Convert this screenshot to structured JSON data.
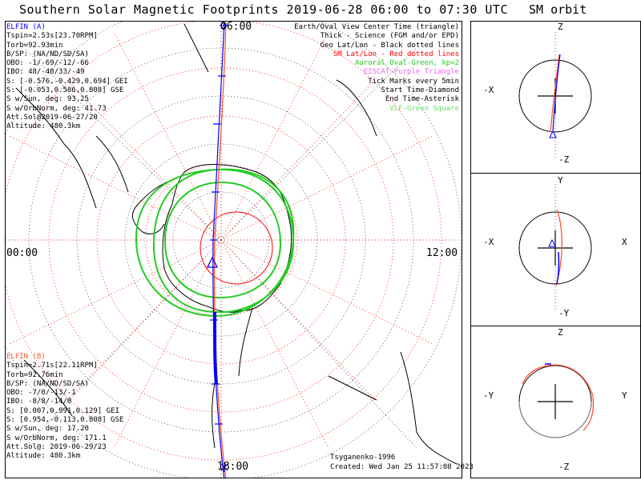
{
  "title": "Southern Solar Magnetic Footprints 2019-06-28 06:00 to 07:30 UTC",
  "orbit_title": "SM orbit",
  "legend": [
    {
      "text": "Earth/Oval View Center Time (triangle)",
      "color": "#000000"
    },
    {
      "text": "Thick - Science (FGM and/or EPD)",
      "color": "#000000"
    },
    {
      "text": "Geo Lat/Lon - Black dotted lines",
      "color": "#000000"
    },
    {
      "text": "SM Lat/Lon - Red dotted lines",
      "color": "#ff0000"
    },
    {
      "text": "Auroral Oval-Green, kp=2",
      "color": "#22cc22"
    },
    {
      "text": "EISCAT-Purple Triangle",
      "color": "#ee66ee"
    },
    {
      "text": "Tick Marks every 5min",
      "color": "#000000"
    },
    {
      "text": "Start Time-Diamond",
      "color": "#000000"
    },
    {
      "text": "End Time-Asterisk",
      "color": "#000000"
    },
    {
      "text": "VLF-Green Square",
      "color": "#66dd66"
    }
  ],
  "elfin_a": {
    "name": "ELFIN (A)",
    "color": "#0000ff",
    "lines": [
      "Tspin=2.53s[23.70RPM]",
      "Torb=92.93min",
      "B/SP: (NA/ND/SD/SA)",
      "OBO: -1/-69/-12/-66",
      "IBO: 48/-48/33/-49",
      "S: [-0.576,-0.429,0.694] GEI",
      "S: [-0.053,0.586,0.808] GSE",
      "S w/Sun, deg: 93.25",
      "S w/OrbNorm, deg: 41.73",
      "Att.Sol@2019-06-27/20",
      "Altitude: 480.3km"
    ]
  },
  "elfin_b": {
    "name": "ELFIN (B)",
    "color": "#ff5533",
    "lines": [
      "Tspin=2.71s[22.11RPM]",
      "Torb=92.76min",
      "B/SP: (NA/ND/SD/SA)",
      "OBO: -7/0/-13/-1",
      "IBO: -8/8/-14/0",
      "S: [0.007,0.991,0.129] GEI",
      "S: [0.954,-0.113,0.808] GSE",
      "S w/Sun, deg: 17.20",
      "S w/OrbNorm, deg: 171.1",
      "Att.Sol@: 2019-06-29/23",
      "Altitude: 480.3km"
    ]
  },
  "clock_labels": {
    "top": "06:00",
    "bottom": "18:00",
    "left": "00:00",
    "right": "12:00"
  },
  "credit": "Tsyganenko-1996",
  "created": "Created: Wed Jan 25 11:57:08 2023",
  "orbit_panels": [
    {
      "top": "Z",
      "bottom": "-Z",
      "left": "-X",
      "right": ""
    },
    {
      "top": "Y",
      "bottom": "-Y",
      "left": "-X",
      "right": "X"
    },
    {
      "top": "Z",
      "bottom": "-Z",
      "left": "-Y",
      "right": "Y"
    }
  ],
  "colors": {
    "probe_a": "#0000ff",
    "probe_b": "#ff5533",
    "sm_grid": "#ff0000",
    "oval": "#22cc22"
  }
}
